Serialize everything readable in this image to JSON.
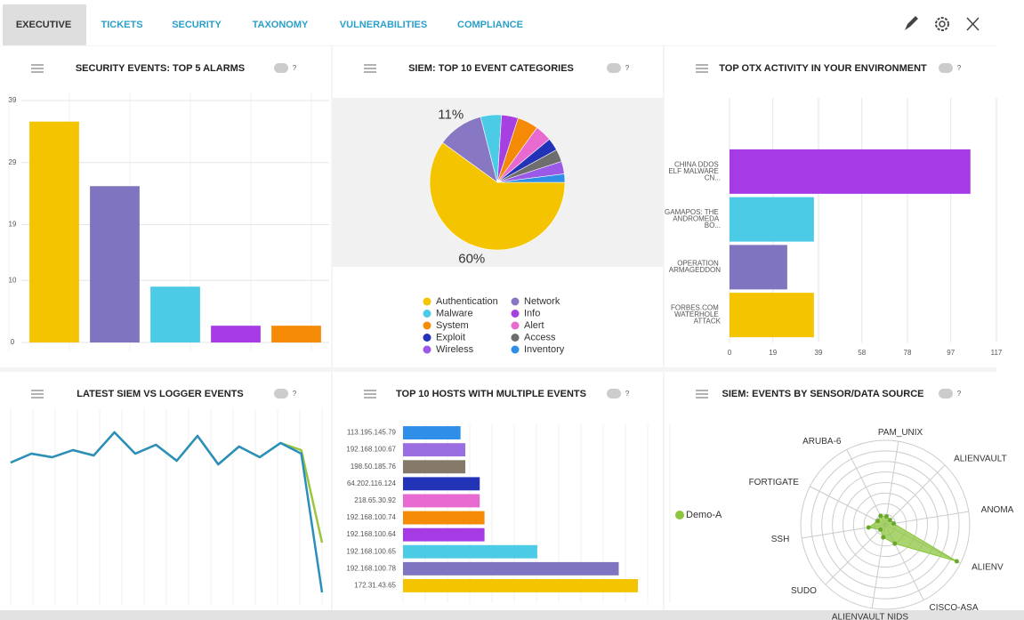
{
  "tabs": [
    "EXECUTIVE",
    "TICKETS",
    "SECURITY",
    "TAXONOMY",
    "VULNERABILITIES",
    "COMPLIANCE"
  ],
  "active_tab": "EXECUTIVE",
  "help_label": "?",
  "chart_data": [
    {
      "type": "bar",
      "title": "SECURITY EVENTS: TOP 5 ALARMS",
      "categories": [
        null,
        null,
        null,
        null,
        null
      ],
      "values": [
        35.6,
        25.2,
        9.0,
        2.7,
        2.7
      ],
      "colors": [
        "#f5c400",
        "#7f74bf",
        "#4ccbe6",
        "#a63be6",
        "#f58a07"
      ],
      "ylim": [
        0,
        39
      ],
      "yticks": [
        0,
        10,
        19,
        29,
        39
      ],
      "grid": true
    },
    {
      "type": "pie",
      "title": "SIEM: TOP 10 EVENT CATEGORIES",
      "categories": [
        "Authentication",
        "Network",
        "Malware",
        "Info",
        "System",
        "Alert",
        "Exploit",
        "Access",
        "Wireless",
        "Inventory"
      ],
      "values": [
        60,
        11,
        5,
        4,
        5,
        4,
        3,
        3,
        3,
        2
      ],
      "value_labels": [
        "60%",
        "11%",
        null,
        null,
        null,
        null,
        null,
        null,
        null,
        null
      ],
      "colors": [
        "#f5c400",
        "#8878c3",
        "#4ccbe6",
        "#a640e0",
        "#f58a07",
        "#e86ad1",
        "#2233b8",
        "#6e6e6e",
        "#9b59e8",
        "#2f8fe8"
      ],
      "legend": "bottom"
    },
    {
      "type": "bar",
      "horizontal": true,
      "title": "TOP OTX ACTIVITY IN YOUR ENVIRONMENT",
      "categories": [
        "CHINA DDOS ELF MALWARE CN...",
        "GAMAPOS: THE ANDROMEDA BO...",
        "OPERATION ARMAGEDDON",
        "FORBES.COM WATERHOLE ATTACK"
      ],
      "values": [
        105.6,
        37,
        25.3,
        37
      ],
      "colors": [
        "#a63be6",
        "#4ccbe6",
        "#7f74bf",
        "#f5c400"
      ],
      "xlim": [
        0,
        117
      ],
      "xticks": [
        0,
        19,
        39,
        58,
        78,
        97,
        117
      ],
      "grid": true
    },
    {
      "type": "line",
      "title": "LATEST SIEM VS LOGGER EVENTS",
      "series": [
        {
          "color": "#9bc53d",
          "values": [
            75,
            80,
            78,
            82,
            79,
            92,
            80,
            85,
            76,
            90,
            74,
            84,
            78,
            86,
            82,
            30
          ]
        },
        {
          "color": "#2a8fbd",
          "values": [
            75,
            80,
            78,
            82,
            79,
            92,
            80,
            85,
            76,
            90,
            74,
            84,
            78,
            86,
            80,
            2
          ]
        }
      ],
      "ylim": [
        0,
        100
      ]
    },
    {
      "type": "bar",
      "horizontal": true,
      "title": "TOP 10 HOSTS WITH MULTIPLE EVENTS",
      "categories": [
        "113.195.145.79",
        "192.168.100.67",
        "198.50.185.76",
        "64.202.116.124",
        "218.65.30.92",
        "192.168.100.74",
        "192.168.100.64",
        "192.168.100.65",
        "192.168.100.78",
        "172.31.43.65"
      ],
      "values": [
        12,
        13,
        13,
        16,
        16,
        17,
        17,
        28,
        45,
        49
      ],
      "colors": [
        "#2f8fe8",
        "#9a6de0",
        "#857a6a",
        "#2233b8",
        "#e86ad1",
        "#f58a07",
        "#a63be6",
        "#4ccbe6",
        "#7f74bf",
        "#f5c400"
      ],
      "xlim": [
        0,
        54
      ]
    },
    {
      "type": "radar",
      "title": "SIEM: EVENTS BY SENSOR/DATA SOURCE",
      "categories": [
        "PAM_UNIX",
        "ALIENVAULT",
        "ANOMA",
        "ALIENV",
        "CISCO-ASA",
        "ALIENVAULT NIDS",
        "SUDO",
        "SSH",
        "FORTIGATE",
        "ARUBA-6"
      ],
      "series": [
        {
          "name": "Demo-A",
          "color": "#8cc63f",
          "values": [
            10,
            8,
            10,
            95,
            25,
            15,
            8,
            20,
            10,
            12
          ]
        }
      ],
      "rlim": [
        0,
        100
      ],
      "legend": "left"
    }
  ]
}
